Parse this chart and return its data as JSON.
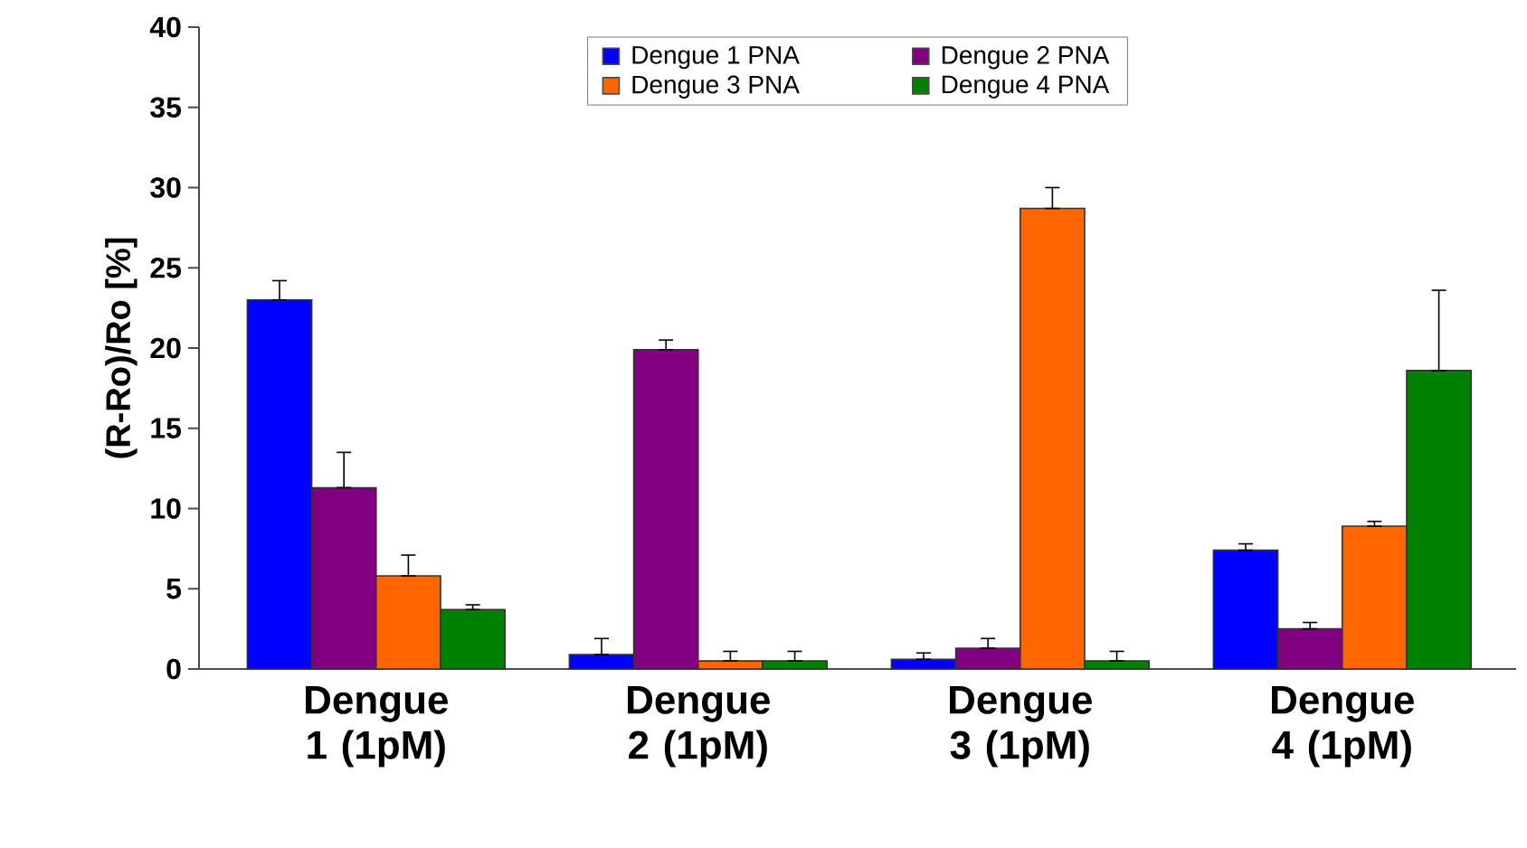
{
  "chart_data": {
    "type": "bar",
    "ylabel": "(R-Ro)/Ro [%]",
    "categories": [
      "Dengue 1 (1pM)",
      "Dengue 2 (1pM)",
      "Dengue 3 (1pM)",
      "Dengue 4 (1pM)"
    ],
    "series": [
      {
        "name": "Dengue 1 PNA",
        "color": "#0000ff",
        "values": [
          23.0,
          0.9,
          0.6,
          7.4
        ],
        "errors": [
          [
            23.0,
            24.2
          ],
          [
            0.9,
            1.9
          ],
          [
            0.6,
            1.0
          ],
          [
            7.4,
            7.8
          ]
        ]
      },
      {
        "name": "Dengue 2 PNA",
        "color": "#800080",
        "values": [
          11.3,
          19.9,
          1.3,
          2.5
        ],
        "errors": [
          [
            11.3,
            13.5
          ],
          [
            19.9,
            20.5
          ],
          [
            1.3,
            1.9
          ],
          [
            2.5,
            2.9
          ]
        ]
      },
      {
        "name": "Dengue 3 PNA",
        "color": "#ff6600",
        "values": [
          5.8,
          0.5,
          28.7,
          8.9
        ],
        "errors": [
          [
            5.8,
            7.1
          ],
          [
            0.5,
            1.1
          ],
          [
            28.7,
            30.0
          ],
          [
            8.9,
            9.2
          ]
        ]
      },
      {
        "name": "Dengue 4 PNA",
        "color": "#008000",
        "values": [
          3.7,
          0.5,
          0.5,
          18.6
        ],
        "errors": [
          [
            3.7,
            4.0
          ],
          [
            0.5,
            1.1
          ],
          [
            0.5,
            1.1
          ],
          [
            18.6,
            23.6
          ]
        ]
      }
    ],
    "ylim": [
      0,
      40
    ],
    "yticks": [
      0,
      5,
      10,
      15,
      20,
      25,
      30,
      35,
      40
    ],
    "grid": false,
    "legend": "top"
  }
}
